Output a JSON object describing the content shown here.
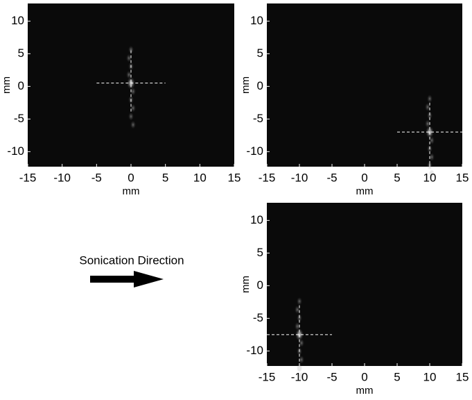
{
  "chart_data": [
    {
      "type": "image",
      "xlabel": "mm",
      "ylabel": "mm",
      "xlim": [
        -15,
        15
      ],
      "ylim": [
        -12.3,
        12.7
      ],
      "xticks": [
        -15,
        -10,
        -5,
        0,
        5,
        10,
        15
      ],
      "yticks": [
        -10,
        -5,
        0,
        5,
        10
      ],
      "crosshair": {
        "x": 0,
        "y": 0.5,
        "h_from": -5,
        "h_to": 5,
        "v_from": 5.5,
        "v_to": -4
      }
    },
    {
      "type": "image",
      "xlabel": "mm",
      "ylabel": "mm",
      "xlim": [
        -15,
        15
      ],
      "ylim": [
        -12.3,
        12.7
      ],
      "xticks": [
        -15,
        -10,
        -5,
        0,
        5,
        10,
        15
      ],
      "yticks": [
        -10,
        -5,
        0,
        5,
        10
      ],
      "crosshair": {
        "x": 10,
        "y": -7,
        "h_from": 5,
        "h_to": 15,
        "v_from": -2.5,
        "v_to": -12.3
      }
    },
    {
      "type": "image",
      "xlabel": "mm",
      "ylabel": "mm",
      "xlim": [
        -15,
        15
      ],
      "ylim": [
        -12.3,
        12.7
      ],
      "xticks": [
        -15,
        -10,
        -5,
        0,
        5,
        10,
        15
      ],
      "yticks": [
        -10,
        -5,
        0,
        5,
        10
      ],
      "crosshair": {
        "x": -10,
        "y": -7.5,
        "h_from": -15,
        "h_to": -5,
        "v_from": -3,
        "v_to": -12.3
      }
    }
  ],
  "annotation": "Sonication Direction"
}
